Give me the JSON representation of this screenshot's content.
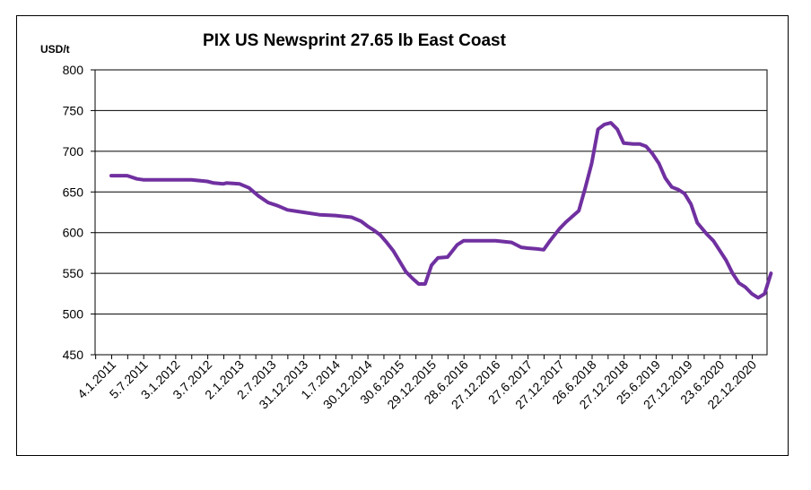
{
  "chart_data": {
    "type": "line",
    "title": "PIX US Newsprint 27.65 lb East Coast",
    "ylabel": "USD/t",
    "xlabel": "",
    "ylim": [
      450,
      800
    ],
    "yticks": [
      "450",
      "500",
      "550",
      "600",
      "650",
      "700",
      "750",
      "800"
    ],
    "x_tick_labels": [
      "4.1.2011",
      "5.7.2011",
      "3.1.2012",
      "3.7.2012",
      "2.1.2013",
      "2.7.2013",
      "31.12.2013",
      "1.7.2014",
      "30.12.2014",
      "30.6.2015",
      "29.12.2015",
      "28.6.2016",
      "27.12.2016",
      "27.6.2017",
      "27.12.2017",
      "26.6.2018",
      "27.12.2018",
      "25.6.2019",
      "27.12.2019",
      "23.6.2020",
      "22.12.2020"
    ],
    "grid": "horizontal",
    "line_color": "#7030A0",
    "series": [
      {
        "x": [
          0,
          0.5,
          0.8,
          1.0,
          1.5,
          2.0,
          2.5,
          3.0,
          3.2,
          3.5,
          3.6,
          4.0,
          4.3,
          4.6,
          4.9,
          5.2,
          5.5,
          6.0,
          6.5,
          7.0,
          7.5,
          7.8,
          8.0,
          8.2,
          8.4,
          8.6,
          8.8,
          9.0,
          9.2,
          9.4,
          9.6,
          9.8,
          10.0,
          10.2,
          10.5,
          10.8,
          11.0,
          11.2,
          11.5,
          12.0,
          12.5,
          12.8,
          13.0,
          13.3,
          13.5,
          13.7,
          14.0,
          14.2,
          14.4,
          14.6,
          14.8,
          15.0,
          15.2,
          15.4,
          15.6,
          15.8,
          16.0,
          16.3,
          16.5,
          16.7,
          16.9,
          17.1,
          17.3,
          17.5,
          17.7,
          17.9,
          18.1,
          18.3,
          18.6,
          18.8,
          19.0,
          19.2,
          19.4,
          19.6,
          19.8,
          20.0,
          20.2,
          20.4,
          20.6
        ],
        "values": [
          670,
          670,
          666,
          665,
          665,
          665,
          665,
          663,
          661,
          660,
          661,
          660,
          655,
          645,
          637,
          633,
          628,
          625,
          622,
          621,
          619,
          614,
          608,
          603,
          597,
          588,
          578,
          565,
          552,
          544,
          537,
          537,
          560,
          569,
          570,
          585,
          590,
          590,
          590,
          590,
          588,
          582,
          581,
          580,
          579,
          590,
          605,
          613,
          620,
          627,
          655,
          685,
          727,
          733,
          735,
          727,
          710,
          709,
          709,
          706,
          697,
          685,
          667,
          656,
          653,
          648,
          635,
          612,
          598,
          590,
          578,
          566,
          550,
          538,
          533,
          525,
          520,
          525,
          550
        ]
      }
    ]
  }
}
